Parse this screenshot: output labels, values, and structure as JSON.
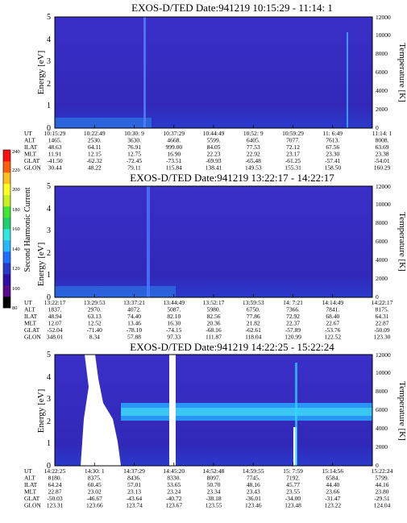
{
  "panels": [
    {
      "title": "EXOS-D/TED   Date:941219  10:15:29 - 11:14: 1",
      "ylabel": "Energy [eV]",
      "y2label": "Temperature [K]",
      "yticks": [
        "0",
        "1",
        "2",
        "3",
        "4",
        "5"
      ],
      "y2ticks": [
        "0",
        "2000",
        "4000",
        "6000",
        "8000",
        "10000",
        "12000"
      ],
      "rows": [
        {
          "label": "UT",
          "values": [
            "10:15:29",
            "10:22:49",
            "10:30: 9",
            "10:37:29",
            "10:44:49",
            "10:52: 9",
            "10:59:29",
            "11: 6:49",
            "11:14: 1"
          ]
        },
        {
          "label": "ALT",
          "values": [
            "1465.",
            "2530.",
            "3630.",
            "4668.",
            "5599.",
            "6405.",
            "7077.",
            "7613.",
            "8008."
          ]
        },
        {
          "label": "ILAT",
          "values": [
            "48.63",
            "64.11",
            "76.91",
            "999.00",
            "84.05",
            "77.53",
            "72.12",
            "67.56",
            "63.69"
          ]
        },
        {
          "label": "MLT",
          "values": [
            "11.91",
            "12.15",
            "12.75",
            "16.90",
            "22.23",
            "22.92",
            "23.17",
            "23.30",
            "23.38"
          ]
        },
        {
          "label": "GLAT",
          "values": [
            "-41.50",
            "-62.32",
            "-72.45",
            "-73.51",
            "-69.93",
            "-65.48",
            "-61.25",
            "-57.41",
            "-54.01"
          ]
        },
        {
          "label": "GLON",
          "values": [
            "30.44",
            "48.22",
            "79.11",
            "115.84",
            "138.41",
            "149.53",
            "155.31",
            "158.50",
            "160.29"
          ]
        }
      ]
    },
    {
      "title": "EXOS-D/TED   Date:941219  13:22:17 - 14:22:17",
      "ylabel": "Energy [eV]",
      "y2label": "Temperature [K]",
      "yticks": [
        "0",
        "1",
        "2",
        "3",
        "4",
        "5"
      ],
      "y2ticks": [
        "0",
        "2000",
        "4000",
        "6000",
        "8000",
        "10000",
        "12000"
      ],
      "rows": [
        {
          "label": "UT",
          "values": [
            "13:22:17",
            "13:29:53",
            "13:37:21",
            "13:44:49",
            "13:52:17",
            "13:59:53",
            "14: 7:21",
            "14:14:49",
            "14:22:17"
          ]
        },
        {
          "label": "ALT",
          "values": [
            "1837.",
            "2970.",
            "4072.",
            "5087.",
            "5980.",
            "6750.",
            "7366.",
            "7841.",
            "8175."
          ]
        },
        {
          "label": "ILAT",
          "values": [
            "48.94",
            "63.13",
            "74.40",
            "82.10",
            "82.56",
            "77.86",
            "72.92",
            "68.40",
            "64.31"
          ]
        },
        {
          "label": "MLT",
          "values": [
            "12.07",
            "12.52",
            "13.46",
            "16.30",
            "20.36",
            "21.82",
            "22.37",
            "22.67",
            "22.87"
          ]
        },
        {
          "label": "GLAT",
          "values": [
            "-52.04",
            "-71.40",
            "-78.10",
            "-74.15",
            "-68.16",
            "-62.61",
            "-57.89",
            "-53.76",
            "-50.09"
          ]
        },
        {
          "label": "GLON",
          "values": [
            "348.01",
            "8.34",
            "57.88",
            "97.33",
            "111.87",
            "118.04",
            "120.99",
            "122.52",
            "123.30"
          ]
        }
      ]
    },
    {
      "title": "EXOS-D/TED   Date:941219  14:22:25 - 15:22:24",
      "ylabel": "Energy [eV]",
      "y2label": "Temperature [K]",
      "yticks": [
        "0",
        "1",
        "2",
        "3",
        "4",
        "5"
      ],
      "y2ticks": [
        "0",
        "2000",
        "4000",
        "6000",
        "8000",
        "10000",
        "12000"
      ],
      "rows": [
        {
          "label": "UT",
          "values": [
            "14:22:25",
            "14:30: 1",
            "14:37:29",
            "14:45:20",
            "14:52:48",
            "14:59:55",
            "15: 7:59",
            "15:14:56",
            "15:22:24"
          ]
        },
        {
          "label": "ALT",
          "values": [
            "8180.",
            "8375.",
            "8436.",
            "8330.",
            "8097.",
            "7745.",
            "7192.",
            "6584.",
            "5799."
          ]
        },
        {
          "label": "ILAT",
          "values": [
            "64.24",
            "60.45",
            "57.01",
            "53.65",
            "50.70",
            "48.16",
            "45.77",
            "44.40",
            "44.16"
          ]
        },
        {
          "label": "MLT",
          "values": [
            "22.87",
            "23.02",
            "23.13",
            "23.24",
            "23.34",
            "23.43",
            "23.55",
            "23.66",
            "23.80"
          ]
        },
        {
          "label": "GLAT",
          "values": [
            "-50.03",
            "-46.67",
            "-43.64",
            "-40.72",
            "-38.18",
            "-36.01",
            "-34.00",
            "-31.47",
            "-29.51"
          ]
        },
        {
          "label": "GLON",
          "values": [
            "123.31",
            "123.66",
            "123.74",
            "123.67",
            "123.55",
            "123.46",
            "123.48",
            "123.22",
            "124.04"
          ]
        }
      ]
    }
  ],
  "colorbar": {
    "label": "Second Harmonic Current",
    "ticks": [
      "80",
      "100",
      "120",
      "140",
      "160",
      "180",
      "200",
      "220",
      "240"
    ],
    "colors": [
      "#000000",
      "#5a0a8a",
      "#3010a8",
      "#2a3acc",
      "#2070ff",
      "#28b8ff",
      "#30e8e0",
      "#20d070",
      "#40e830",
      "#c8f020",
      "#ffff20",
      "#ffc020",
      "#ff6010",
      "#ff1010"
    ]
  },
  "chart_data": [
    {
      "type": "heatmap",
      "title": "EXOS-D/TED   Date:941219  10:15:29 - 11:14: 1",
      "xlabel": "UT",
      "ylabel": "Energy [eV]",
      "y2label": "Temperature [K]",
      "ylim": [
        0,
        5
      ],
      "y2lim": [
        0,
        12000
      ],
      "x_ticks": [
        "10:15:29",
        "10:22:49",
        "10:30: 9",
        "10:37:29",
        "10:44:49",
        "10:52: 9",
        "10:59:29",
        "11: 6:49",
        "11:14: 1"
      ],
      "colorbar_label": "Second Harmonic Current",
      "colorbar_range": [
        80,
        240
      ]
    },
    {
      "type": "heatmap",
      "title": "EXOS-D/TED   Date:941219  13:22:17 - 14:22:17",
      "xlabel": "UT",
      "ylabel": "Energy [eV]",
      "y2label": "Temperature [K]",
      "ylim": [
        0,
        5
      ],
      "y2lim": [
        0,
        12000
      ],
      "x_ticks": [
        "13:22:17",
        "13:29:53",
        "13:37:21",
        "13:44:49",
        "13:52:17",
        "13:59:53",
        "14: 7:21",
        "14:14:49",
        "14:22:17"
      ],
      "colorbar_label": "Second Harmonic Current",
      "colorbar_range": [
        80,
        240
      ]
    },
    {
      "type": "heatmap",
      "title": "EXOS-D/TED   Date:941219  14:22:25 - 15:22:24",
      "xlabel": "UT",
      "ylabel": "Energy [eV]",
      "y2label": "Temperature [K]",
      "ylim": [
        0,
        5
      ],
      "y2lim": [
        0,
        12000
      ],
      "x_ticks": [
        "14:22:25",
        "14:30: 1",
        "14:37:29",
        "14:45:20",
        "14:52:48",
        "14:59:55",
        "15: 7:59",
        "15:14:56",
        "15:22:24"
      ],
      "colorbar_label": "Second Harmonic Current",
      "colorbar_range": [
        80,
        240
      ]
    }
  ]
}
